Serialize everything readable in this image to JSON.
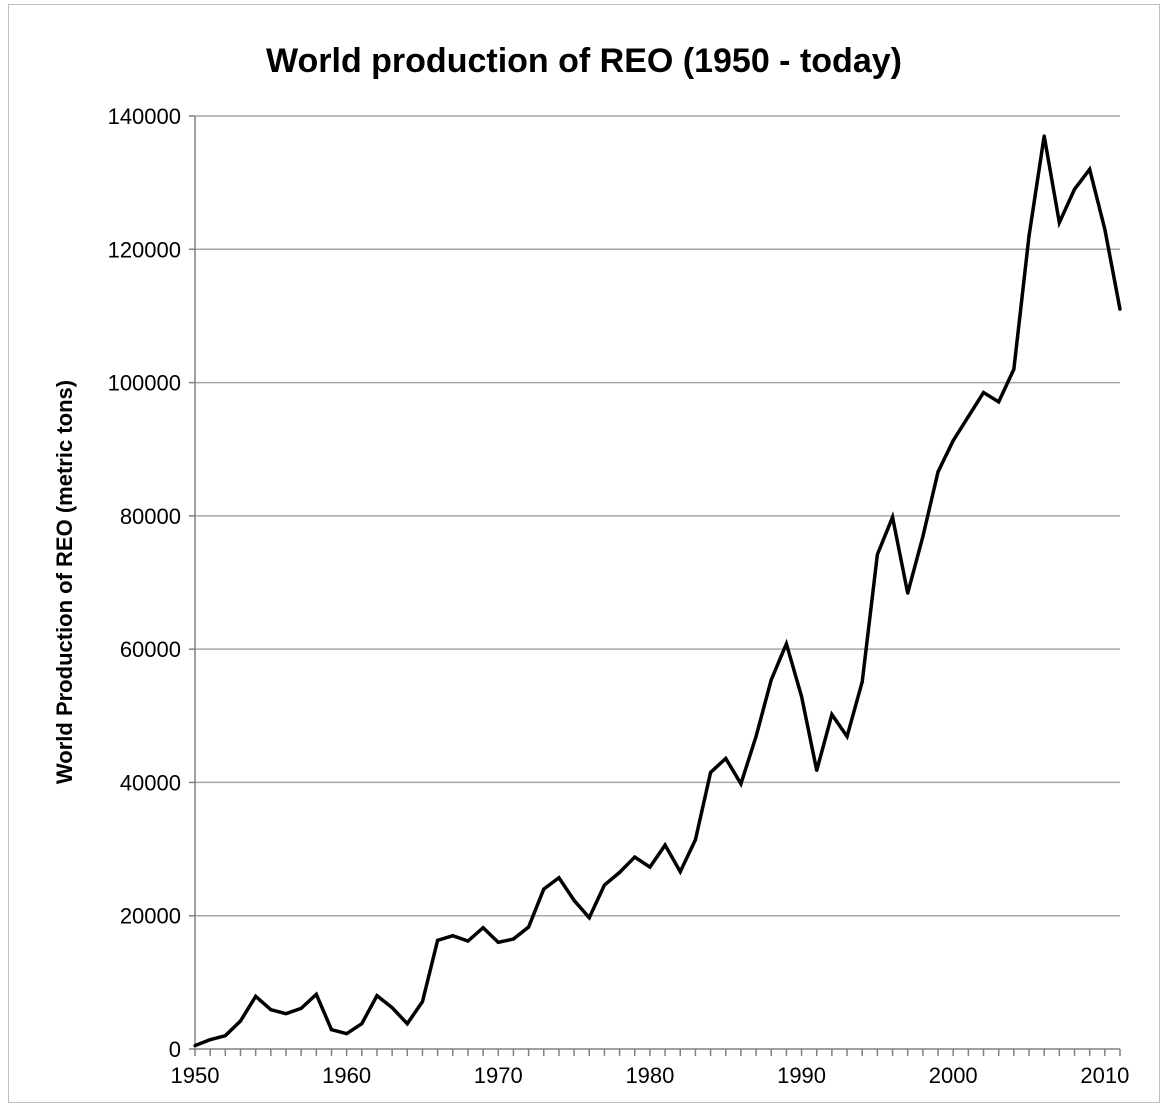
{
  "chart_data": {
    "type": "line",
    "title": "World production of REO (1950 - today)",
    "xlabel": "",
    "ylabel": "World Production of REO (metric tons)",
    "xlim": [
      1950,
      2011
    ],
    "ylim": [
      0,
      140000
    ],
    "x_ticks": [
      "1950",
      "1960",
      "1970",
      "1980",
      "1990",
      "2000",
      "2010"
    ],
    "y_ticks": [
      "0",
      "20000",
      "40000",
      "60000",
      "80000",
      "100000",
      "120000",
      "140000"
    ],
    "grid": true,
    "legend": "none",
    "line_color": "#000000",
    "series": [
      {
        "x": [
          1950,
          1951,
          1952,
          1953,
          1954,
          1955,
          1956,
          1957,
          1958,
          1959,
          1960,
          1961,
          1962,
          1963,
          1964,
          1965,
          1966,
          1967,
          1968,
          1969,
          1970,
          1971,
          1972,
          1973,
          1974,
          1975,
          1976,
          1977,
          1978,
          1979,
          1980,
          1981,
          1982,
          1983,
          1984,
          1985,
          1986,
          1987,
          1988,
          1989,
          1990,
          1991,
          1992,
          1993,
          1994,
          1995,
          1996,
          1997,
          1998,
          1999,
          2000,
          2001,
          2002,
          2003,
          2004,
          2005,
          2006,
          2007,
          2008,
          2009,
          2010,
          2011
        ],
        "values": [
          500,
          1400,
          2000,
          4200,
          7900,
          5900,
          5300,
          6100,
          8200,
          2900,
          2300,
          3800,
          8000,
          6200,
          3800,
          7100,
          16300,
          17000,
          16200,
          18200,
          16000,
          16500,
          18300,
          24000,
          25700,
          22300,
          19700,
          24600,
          26500,
          28800,
          27300,
          30600,
          26600,
          31400,
          41500,
          43600,
          39800,
          46900,
          55400,
          60800,
          52900,
          41800,
          50200,
          46900,
          55100,
          74200,
          79800,
          68400,
          76900,
          86600,
          91300,
          94900,
          98500,
          97100,
          102000,
          122000,
          137000,
          124000,
          129000,
          132000,
          123000,
          111000
        ]
      }
    ]
  }
}
